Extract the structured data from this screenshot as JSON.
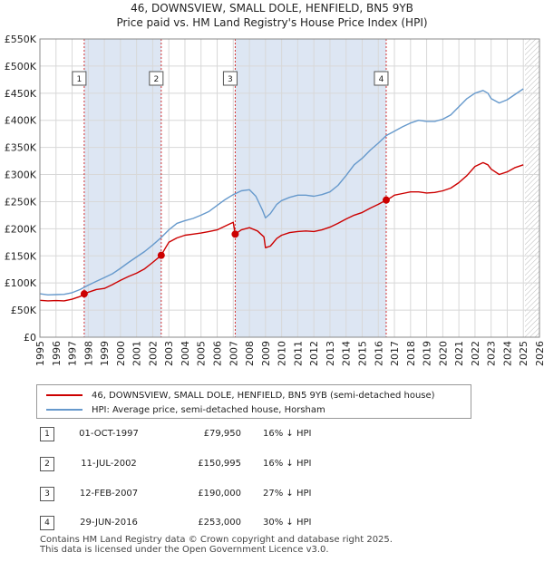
{
  "chart_data": {
    "type": "line",
    "title": "46, DOWNSVIEW, SMALL DOLE, HENFIELD, BN5 9YB",
    "subtitle": "Price paid vs. HM Land Registry's House Price Index (HPI)",
    "xlim": [
      1995,
      2026
    ],
    "ylim": [
      0,
      550000
    ],
    "x_ticks": [
      "1995",
      "1996",
      "1997",
      "1998",
      "1999",
      "2000",
      "2001",
      "2002",
      "2003",
      "2004",
      "2005",
      "2006",
      "2007",
      "2008",
      "2009",
      "2010",
      "2011",
      "2012",
      "2013",
      "2014",
      "2015",
      "2016",
      "2017",
      "2018",
      "2019",
      "2020",
      "2021",
      "2022",
      "2023",
      "2024",
      "2025",
      "2026"
    ],
    "y_ticks": [
      {
        "value": 0,
        "label": "£0"
      },
      {
        "value": 50000,
        "label": "£50K"
      },
      {
        "value": 100000,
        "label": "£100K"
      },
      {
        "value": 150000,
        "label": "£150K"
      },
      {
        "value": 200000,
        "label": "£200K"
      },
      {
        "value": 250000,
        "label": "£250K"
      },
      {
        "value": 300000,
        "label": "£300K"
      },
      {
        "value": 350000,
        "label": "£350K"
      },
      {
        "value": 400000,
        "label": "£400K"
      },
      {
        "value": 450000,
        "label": "£450K"
      },
      {
        "value": 500000,
        "label": "£500K"
      },
      {
        "value": 550000,
        "label": "£550K"
      }
    ],
    "hatched_from": 2025.1,
    "series": [
      {
        "name": "46, DOWNSVIEW, SMALL DOLE, HENFIELD, BN5 9YB (semi-detached house)",
        "color": "#cc0000",
        "x": [
          1995.0,
          1995.5,
          1996.0,
          1996.5,
          1997.0,
          1997.5,
          1997.75,
          1998.0,
          1998.5,
          1999.0,
          1999.5,
          2000.0,
          2000.5,
          2001.0,
          2001.5,
          2002.0,
          2002.53,
          2002.8,
          2003.0,
          2003.5,
          2004.0,
          2004.5,
          2005.0,
          2005.5,
          2006.0,
          2006.5,
          2007.0,
          2007.12,
          2007.5,
          2008.0,
          2008.5,
          2008.9,
          2009.0,
          2009.3,
          2009.7,
          2010.0,
          2010.5,
          2011.0,
          2011.5,
          2012.0,
          2012.5,
          2013.0,
          2013.5,
          2014.0,
          2014.5,
          2015.0,
          2015.5,
          2016.0,
          2016.49,
          2016.8,
          2017.0,
          2017.5,
          2018.0,
          2018.5,
          2019.0,
          2019.5,
          2020.0,
          2020.5,
          2021.0,
          2021.5,
          2022.0,
          2022.5,
          2022.8,
          2023.0,
          2023.5,
          2024.0,
          2024.5,
          2025.0
        ],
        "values": [
          68000,
          67000,
          67500,
          67000,
          70000,
          75000,
          79950,
          83000,
          88000,
          90000,
          97000,
          105000,
          112000,
          118000,
          126000,
          138000,
          150995,
          165000,
          175000,
          183000,
          188000,
          190000,
          192000,
          195000,
          198000,
          205000,
          212000,
          190000,
          198000,
          202000,
          196000,
          185000,
          165000,
          168000,
          182000,
          188000,
          193000,
          195000,
          196000,
          195000,
          198000,
          203000,
          210000,
          218000,
          225000,
          230000,
          238000,
          245000,
          253000,
          258000,
          262000,
          265000,
          268000,
          268000,
          266000,
          267000,
          270000,
          275000,
          285000,
          298000,
          315000,
          322000,
          318000,
          310000,
          300000,
          305000,
          313000,
          318000
        ]
      },
      {
        "name": "HPI: Average price, semi-detached house, Horsham",
        "color": "#6699cc",
        "x": [
          1995.0,
          1995.5,
          1996.0,
          1996.5,
          1997.0,
          1997.5,
          1998.0,
          1998.5,
          1999.0,
          1999.5,
          2000.0,
          2000.5,
          2001.0,
          2001.5,
          2002.0,
          2002.5,
          2003.0,
          2003.5,
          2004.0,
          2004.5,
          2005.0,
          2005.5,
          2006.0,
          2006.5,
          2007.0,
          2007.5,
          2008.0,
          2008.4,
          2008.8,
          2009.0,
          2009.3,
          2009.7,
          2010.0,
          2010.5,
          2011.0,
          2011.5,
          2012.0,
          2012.5,
          2013.0,
          2013.5,
          2014.0,
          2014.5,
          2015.0,
          2015.5,
          2016.0,
          2016.5,
          2017.0,
          2017.5,
          2018.0,
          2018.5,
          2019.0,
          2019.5,
          2020.0,
          2020.5,
          2021.0,
          2021.5,
          2022.0,
          2022.5,
          2022.8,
          2023.0,
          2023.5,
          2024.0,
          2024.5,
          2025.0
        ],
        "values": [
          80000,
          78000,
          78500,
          79000,
          82000,
          88000,
          96000,
          103000,
          110000,
          117000,
          127000,
          138000,
          148000,
          158000,
          170000,
          183000,
          198000,
          210000,
          215000,
          219000,
          225000,
          232000,
          243000,
          254000,
          263000,
          270000,
          272000,
          260000,
          235000,
          220000,
          228000,
          245000,
          252000,
          258000,
          262000,
          262000,
          260000,
          263000,
          268000,
          280000,
          298000,
          318000,
          330000,
          345000,
          358000,
          372000,
          380000,
          388000,
          395000,
          400000,
          398000,
          398000,
          402000,
          410000,
          425000,
          440000,
          450000,
          455000,
          450000,
          440000,
          432000,
          438000,
          448000,
          458000
        ]
      }
    ],
    "sales": [
      {
        "num": "1",
        "x": 1997.75,
        "value": 79950
      },
      {
        "num": "2",
        "x": 2002.53,
        "value": 150995
      },
      {
        "num": "3",
        "x": 2007.12,
        "value": 190000
      },
      {
        "num": "4",
        "x": 2016.49,
        "value": 253000
      }
    ]
  },
  "legend": {
    "property_label": "46, DOWNSVIEW, SMALL DOLE, HENFIELD, BN5 9YB (semi-detached house)",
    "hpi_label": "HPI: Average price, semi-detached house, Horsham"
  },
  "sales_table": [
    {
      "num": "1",
      "date": "01-OCT-1997",
      "price": "£79,950",
      "hpi": "16% ↓ HPI"
    },
    {
      "num": "2",
      "date": "11-JUL-2002",
      "price": "£150,995",
      "hpi": "16% ↓ HPI"
    },
    {
      "num": "3",
      "date": "12-FEB-2007",
      "price": "£190,000",
      "hpi": "27% ↓ HPI"
    },
    {
      "num": "4",
      "date": "29-JUN-2016",
      "price": "£253,000",
      "hpi": "30% ↓ HPI"
    }
  ],
  "footer": {
    "line1": "Contains HM Land Registry data © Crown copyright and database right 2025.",
    "line2": "This data is licensed under the Open Government Licence v3.0."
  },
  "colors": {
    "property": "#cc0000",
    "hpi": "#6699cc",
    "shade": "#dde6f3"
  }
}
